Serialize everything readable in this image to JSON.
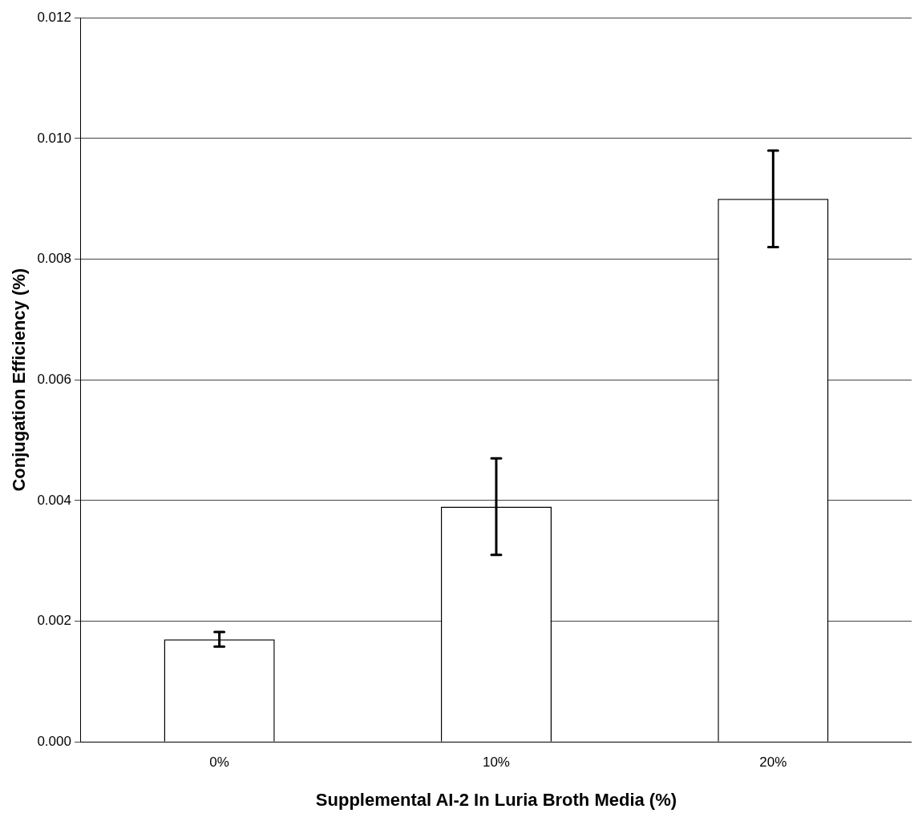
{
  "chart_data": {
    "type": "bar",
    "xlabel": "Supplemental AI-2 In Luria Broth Media (%)",
    "ylabel": "Conjugation Efficiency (%)",
    "categories": [
      "0%",
      "10%",
      "20%"
    ],
    "values": [
      0.0017,
      0.0039,
      0.009
    ],
    "errors": [
      0.00012,
      0.0008,
      0.0008
    ],
    "color": "#ffffff",
    "ylim": [
      0,
      0.012
    ],
    "yticks": [
      {
        "value": 0,
        "label": "0.000"
      },
      {
        "value": 0.002,
        "label": "0.002"
      },
      {
        "value": 0.004,
        "label": "0.004"
      },
      {
        "value": 0.006,
        "label": "0.006"
      },
      {
        "value": 0.008,
        "label": "0.008"
      },
      {
        "value": 0.01,
        "label": "0.010"
      },
      {
        "value": 0.012,
        "label": "0.012"
      }
    ],
    "grid": "y",
    "legend": false
  }
}
